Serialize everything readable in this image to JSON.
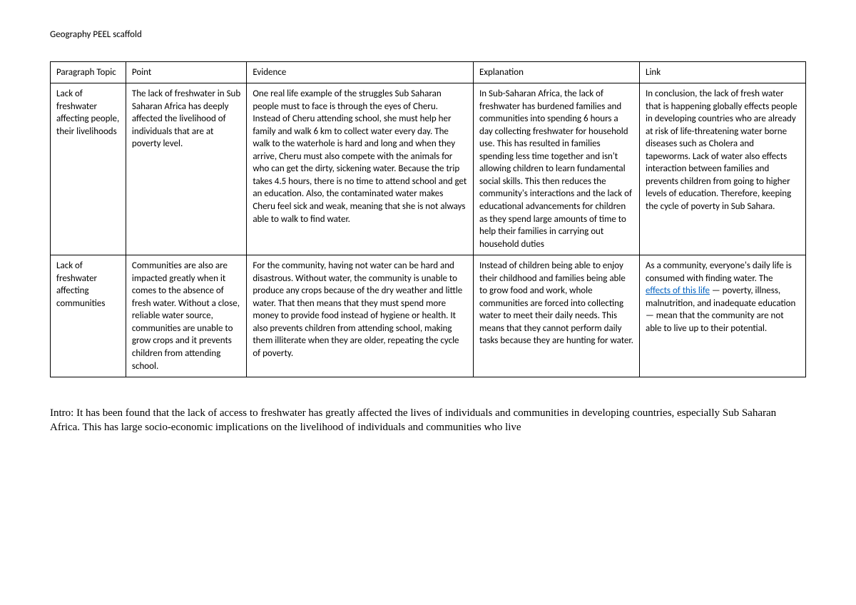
{
  "title": "Geography PEEL scaffold",
  "headers": {
    "topic": "Paragraph Topic",
    "point": "Point",
    "evidence": "Evidence",
    "explanation": "Explanation",
    "link": "Link"
  },
  "rows": [
    {
      "topic": "Lack of freshwater affecting people, their livelihoods",
      "point": "The lack of freshwater in Sub Saharan Africa has deeply affected the livelihood of individuals that are at poverty level.",
      "evidence": "One real life example of the struggles Sub Saharan people must to face is through the eyes of Cheru. Instead of Cheru attending school, she must help her family and walk 6 km to collect water every day. The walk to the waterhole is hard and long and when they arrive, Cheru must also compete with the animals for who can get the dirty, sickening water. Because the trip takes 4.5 hours, there is no time to attend school and get an education. Also, the contaminated water makes Cheru feel sick and weak, meaning that she is not always able to walk to find water.",
      "explanation": "In Sub-Saharan Africa, the lack of freshwater has burdened families and communities into spending 6 hours a day collecting freshwater for household use. This has resulted in families spending less time together and isn't allowing children to learn fundamental social skills. This then reduces the community's interactions and the lack of educational advancements for children as they spend large amounts of time to help their families in carrying out household duties",
      "link": "In conclusion, the lack of fresh water that is happening globally effects people in developing countries who are already at risk of life-threatening water borne diseases such as Cholera and tapeworms. Lack of water also effects interaction between families and prevents children from going to higher levels of education. Therefore, keeping the cycle of poverty in Sub Sahara."
    },
    {
      "topic": "Lack of freshwater affecting communities",
      "point": "Communities are also are impacted greatly when it comes to the absence of fresh water. Without a close, reliable water source, communities are unable to grow crops and it prevents children from attending school.",
      "evidence": "For the community, having not water can be hard and disastrous. Without water, the community is unable to produce any crops because of the dry weather and little water. That then means that they must spend more money to provide food instead of hygiene or health. It also prevents children from attending school, making them illiterate when they are older, repeating the cycle of poverty.",
      "explanation": "Instead of children being able to enjoy their childhood and families being able to grow food and work, whole communities are forced into collecting water to meet their daily needs. This means that they cannot perform daily tasks because they are hunting for water.",
      "link_pre": "As a community, everyone's daily life is consumed with finding water. The ",
      "link_anchor": "effects of this life",
      "link_post": " — poverty, illness, malnutrition, and inadequate education — mean that the community are not able to live up to their potential."
    }
  ],
  "intro": "Intro: It has been found that the lack of access to freshwater has greatly affected the lives of individuals and communities in developing countries, especially Sub Saharan Africa. This has large socio-economic implications on the livelihood of individuals and communities who live"
}
